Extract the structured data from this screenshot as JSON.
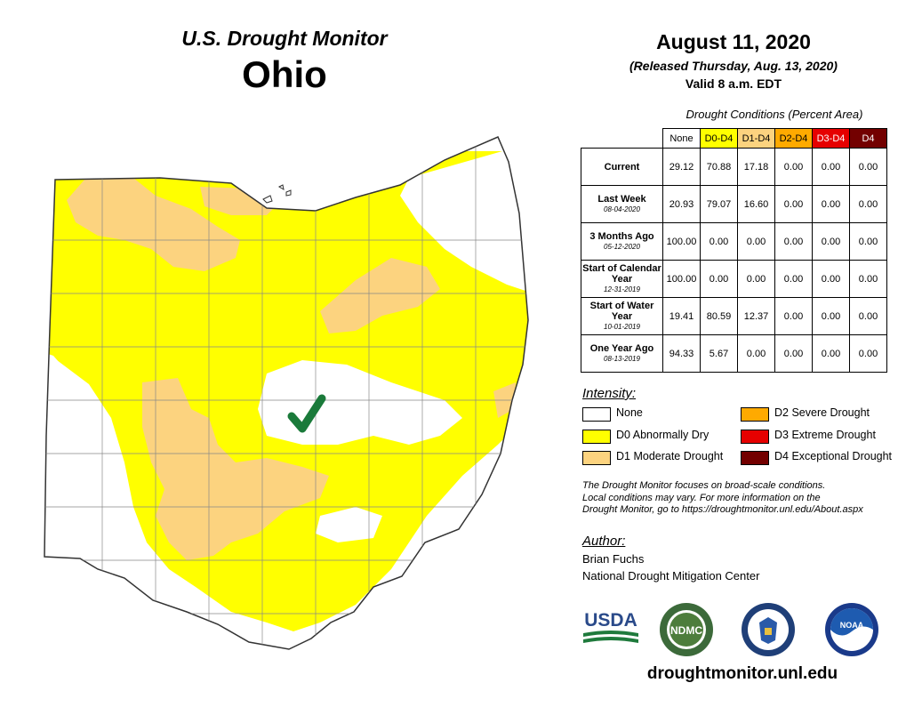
{
  "header": {
    "program": "U.S. Drought Monitor",
    "state": "Ohio",
    "date": "August 11, 2020",
    "released": "(Released Thursday, Aug. 13, 2020)",
    "valid": "Valid 8 a.m. EDT"
  },
  "table": {
    "title": "Drought Conditions (Percent Area)",
    "columns": [
      {
        "label": "None",
        "color": "#ffffff"
      },
      {
        "label": "D0-D4",
        "color": "#ffff00"
      },
      {
        "label": "D1-D4",
        "color": "#fcd37f"
      },
      {
        "label": "D2-D4",
        "color": "#ffaa00"
      },
      {
        "label": "D3-D4",
        "color": "#e60000"
      },
      {
        "label": "D4",
        "color": "#730000"
      }
    ],
    "rows": [
      {
        "label": "Current",
        "sublabel": "",
        "values": [
          "29.12",
          "70.88",
          "17.18",
          "0.00",
          "0.00",
          "0.00"
        ]
      },
      {
        "label": "Last Week",
        "sublabel": "08-04-2020",
        "values": [
          "20.93",
          "79.07",
          "16.60",
          "0.00",
          "0.00",
          "0.00"
        ]
      },
      {
        "label": "3 Months Ago",
        "sublabel": "05-12-2020",
        "values": [
          "100.00",
          "0.00",
          "0.00",
          "0.00",
          "0.00",
          "0.00"
        ]
      },
      {
        "label": "Start of Calendar Year",
        "sublabel": "12-31-2019",
        "values": [
          "100.00",
          "0.00",
          "0.00",
          "0.00",
          "0.00",
          "0.00"
        ]
      },
      {
        "label": "Start of Water Year",
        "sublabel": "10-01-2019",
        "values": [
          "19.41",
          "80.59",
          "12.37",
          "0.00",
          "0.00",
          "0.00"
        ]
      },
      {
        "label": "One Year Ago",
        "sublabel": "08-13-2019",
        "values": [
          "94.33",
          "5.67",
          "0.00",
          "0.00",
          "0.00",
          "0.00"
        ]
      }
    ]
  },
  "intensity": {
    "title": "Intensity:",
    "items": [
      {
        "label": "None",
        "color": "#ffffff"
      },
      {
        "label": "D0 Abnormally Dry",
        "color": "#ffff00"
      },
      {
        "label": "D1 Moderate Drought",
        "color": "#fcd37f"
      },
      {
        "label": "D2 Severe Drought",
        "color": "#ffaa00"
      },
      {
        "label": "D3 Extreme Drought",
        "color": "#e60000"
      },
      {
        "label": "D4 Exceptional Drought",
        "color": "#730000"
      }
    ]
  },
  "note": {
    "lines": [
      "The Drought Monitor focuses on broad-scale conditions.",
      "Local conditions may vary. For more information on the",
      "Drought Monitor, go to https://droughtmonitor.unl.edu/About.aspx"
    ]
  },
  "author": {
    "title": "Author:",
    "name": "Brian Fuchs",
    "org": "National Drought Mitigation Center"
  },
  "logos": {
    "usda": "USDA",
    "ndmc": "NDMC",
    "noaa": "NOAA"
  },
  "website": "droughtmonitor.unl.edu",
  "map_colors": {
    "none": "#ffffff",
    "d0": "#ffff00",
    "d1": "#fcd37f",
    "checkmark": "#1a7a3a",
    "border": "#555555"
  }
}
